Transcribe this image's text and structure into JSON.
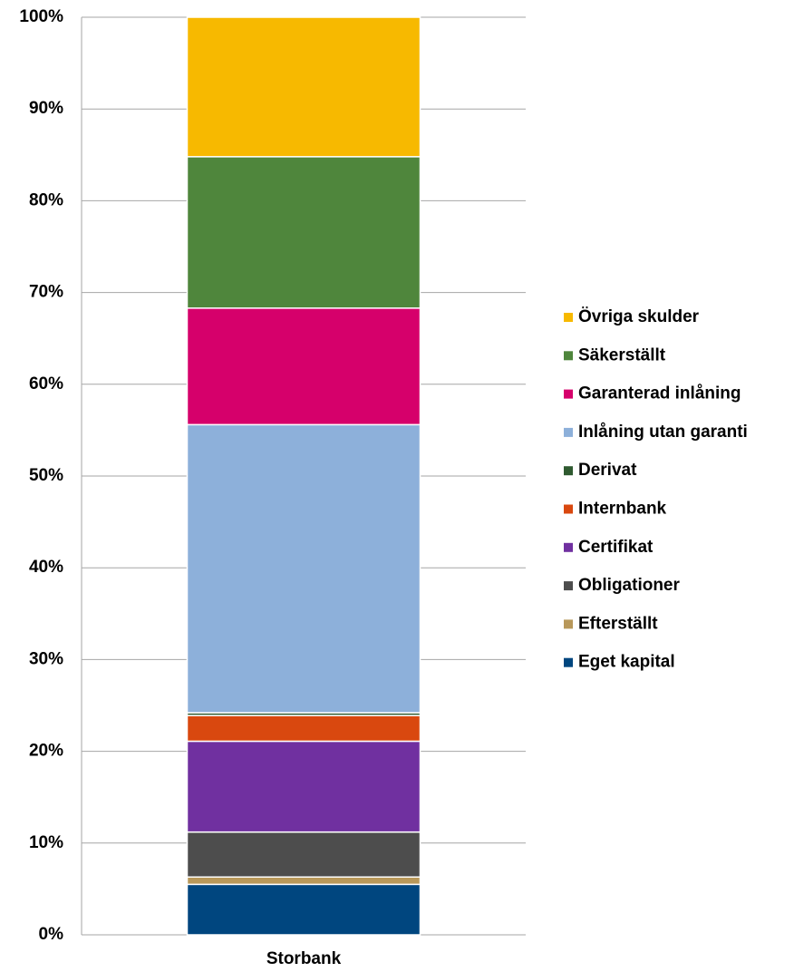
{
  "chart_data": {
    "type": "stacked_bar",
    "categories": [
      "Storbank"
    ],
    "series": [
      {
        "name": "Eget kapital",
        "color": "#00467f",
        "values": [
          5.5
        ]
      },
      {
        "name": "Efterställt",
        "color": "#b8985a",
        "values": [
          0.8
        ]
      },
      {
        "name": "Obligationer",
        "color": "#4d4d4d",
        "values": [
          4.9
        ]
      },
      {
        "name": "Certifikat",
        "color": "#7030a0",
        "values": [
          9.9
        ]
      },
      {
        "name": "Internbank",
        "color": "#d9480f",
        "values": [
          2.8
        ]
      },
      {
        "name": "Derivat",
        "color": "#2f5a30",
        "values": [
          0.3
        ]
      },
      {
        "name": "Inlåning utan garanti",
        "color": "#8db0da",
        "values": [
          31.4
        ]
      },
      {
        "name": "Garanterad inlåning",
        "color": "#d6006b",
        "values": [
          12.7
        ]
      },
      {
        "name": "Säkerställt",
        "color": "#4f863c",
        "values": [
          16.5
        ]
      },
      {
        "name": "Övriga skulder",
        "color": "#f7b900",
        "values": [
          15.2
        ]
      }
    ],
    "ylim": [
      0,
      100
    ],
    "yticks": [
      {
        "value": 0,
        "label": "0%"
      },
      {
        "value": 10,
        "label": "10%"
      },
      {
        "value": 20,
        "label": "20%"
      },
      {
        "value": 30,
        "label": "30%"
      },
      {
        "value": 40,
        "label": "40%"
      },
      {
        "value": 50,
        "label": "50%"
      },
      {
        "value": 60,
        "label": "60%"
      },
      {
        "value": 70,
        "label": "70%"
      },
      {
        "value": 80,
        "label": "80%"
      },
      {
        "value": 90,
        "label": "90%"
      },
      {
        "value": 100,
        "label": "100%"
      }
    ],
    "grid": true,
    "legend": "right"
  }
}
